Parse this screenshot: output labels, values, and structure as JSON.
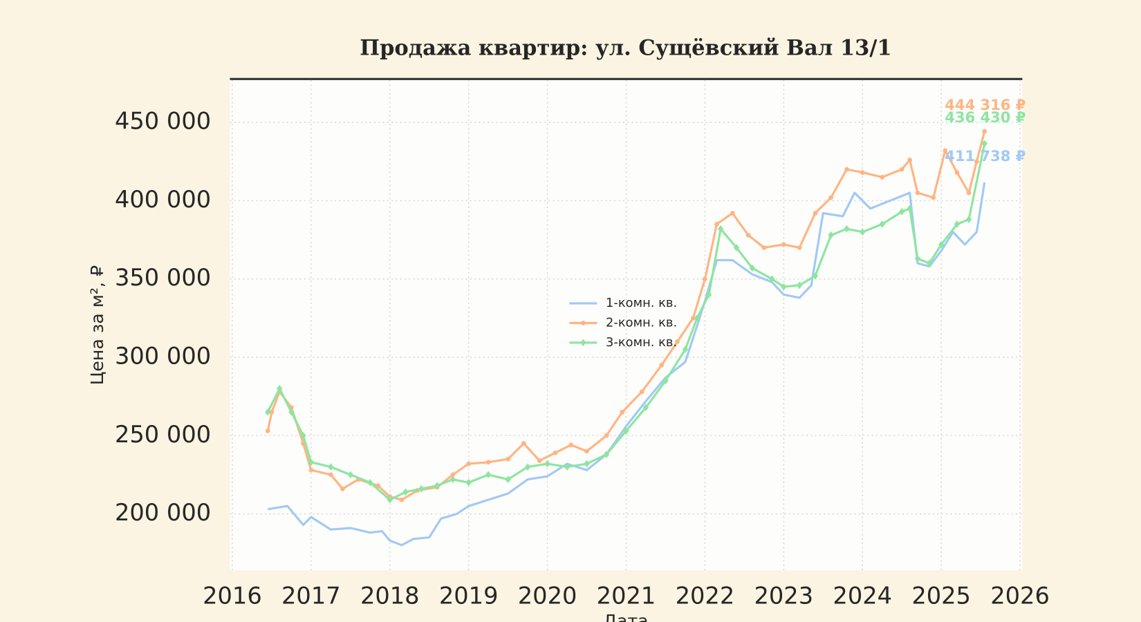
{
  "chart_data": {
    "type": "line",
    "title": "Продажа квартир: ул. Сущёвский Вал 13/1",
    "x_label": "Дата",
    "y_label": "Цена за м², ₽",
    "xlim": [
      2015.97,
      2026.03
    ],
    "ylim": [
      164000,
      477000
    ],
    "xticks": [
      2016,
      2017,
      2018,
      2019,
      2020,
      2021,
      2022,
      2023,
      2024,
      2025,
      2026
    ],
    "yticks": [
      {
        "value": 200000,
        "label": "200 000"
      },
      {
        "value": 250000,
        "label": "250 000"
      },
      {
        "value": 300000,
        "label": "300 000"
      },
      {
        "value": 350000,
        "label": "350 000"
      },
      {
        "value": 400000,
        "label": "400 000"
      },
      {
        "value": 450000,
        "label": "450 000"
      }
    ],
    "grid": true,
    "legend": "center",
    "series": [
      {
        "name": "1-комн. кв.",
        "color": "#a1c9f4",
        "marker": "none",
        "x": [
          2016.45,
          2016.7,
          2016.9,
          2017.0,
          2017.25,
          2017.5,
          2017.75,
          2017.9,
          2018.0,
          2018.15,
          2018.3,
          2018.5,
          2018.65,
          2018.85,
          2019.0,
          2019.25,
          2019.5,
          2019.75,
          2020.0,
          2020.25,
          2020.5,
          2020.75,
          2021.0,
          2021.25,
          2021.5,
          2021.75,
          2021.9,
          2022.0,
          2022.15,
          2022.35,
          2022.6,
          2022.85,
          2023.0,
          2023.2,
          2023.35,
          2023.5,
          2023.75,
          2023.9,
          2024.1,
          2024.35,
          2024.6,
          2024.7,
          2024.85,
          2025.0,
          2025.15,
          2025.3,
          2025.45,
          2025.55
        ],
        "values": [
          203000,
          205000,
          193000,
          198000,
          190000,
          191000,
          188000,
          189000,
          183000,
          180000,
          184000,
          185000,
          197000,
          200000,
          205000,
          209000,
          213000,
          222000,
          224000,
          232000,
          228000,
          238000,
          256000,
          272000,
          287000,
          297000,
          320000,
          336000,
          362000,
          362000,
          353000,
          348000,
          340000,
          338000,
          346000,
          392000,
          390000,
          405000,
          395000,
          400000,
          405000,
          360000,
          358000,
          368000,
          380000,
          372000,
          380000,
          411738
        ],
        "value_labels": [
          null,
          null,
          null,
          null,
          null,
          null,
          null,
          null,
          null,
          null,
          null,
          null,
          null,
          null,
          null,
          null,
          null,
          null,
          null,
          null,
          null,
          null,
          null,
          null,
          null,
          null,
          null,
          null,
          null,
          null,
          null,
          null,
          null,
          null,
          null,
          null,
          null,
          null,
          null,
          null,
          null,
          null,
          null,
          null,
          null,
          null,
          null,
          "411 738 ₽"
        ]
      },
      {
        "name": "2-комн. кв.",
        "color": "#ffb482",
        "marker": "circle",
        "x": [
          2016.45,
          2016.5,
          2016.6,
          2016.75,
          2016.9,
          2017.0,
          2017.25,
          2017.4,
          2017.6,
          2017.85,
          2018.0,
          2018.15,
          2018.35,
          2018.6,
          2018.8,
          2019.0,
          2019.25,
          2019.5,
          2019.7,
          2019.9,
          2020.1,
          2020.3,
          2020.5,
          2020.75,
          2020.95,
          2021.2,
          2021.45,
          2021.65,
          2021.85,
          2022.0,
          2022.15,
          2022.35,
          2022.55,
          2022.75,
          2023.0,
          2023.2,
          2023.4,
          2023.6,
          2023.8,
          2024.0,
          2024.25,
          2024.5,
          2024.6,
          2024.7,
          2024.9,
          2025.05,
          2025.2,
          2025.35,
          2025.45,
          2025.55
        ],
        "values": [
          253000,
          265000,
          278000,
          268000,
          245000,
          228000,
          225000,
          216000,
          222000,
          218000,
          211000,
          209000,
          215000,
          217000,
          225000,
          232000,
          233000,
          235000,
          245000,
          234000,
          239000,
          244000,
          240000,
          250000,
          265000,
          278000,
          295000,
          310000,
          325000,
          350000,
          385000,
          392000,
          378000,
          370000,
          372000,
          370000,
          392000,
          402000,
          420000,
          418000,
          415000,
          420000,
          426000,
          405000,
          402000,
          432000,
          418000,
          405000,
          425000,
          444316
        ],
        "value_labels": [
          null,
          null,
          null,
          null,
          null,
          null,
          null,
          null,
          null,
          null,
          null,
          null,
          null,
          null,
          null,
          null,
          null,
          null,
          null,
          null,
          null,
          null,
          null,
          null,
          null,
          null,
          null,
          null,
          null,
          null,
          null,
          null,
          null,
          null,
          null,
          null,
          null,
          null,
          null,
          null,
          null,
          null,
          null,
          null,
          null,
          null,
          null,
          null,
          null,
          "444 316 ₽"
        ]
      },
      {
        "name": "3-комн. кв.",
        "color": "#8de5a1",
        "marker": "diamond",
        "x": [
          2016.45,
          2016.6,
          2016.75,
          2016.9,
          2017.0,
          2017.25,
          2017.5,
          2017.75,
          2018.0,
          2018.2,
          2018.4,
          2018.6,
          2018.8,
          2019.0,
          2019.25,
          2019.5,
          2019.75,
          2020.0,
          2020.25,
          2020.5,
          2020.75,
          2021.0,
          2021.25,
          2021.5,
          2021.75,
          2021.9,
          2022.05,
          2022.2,
          2022.4,
          2022.6,
          2022.85,
          2023.0,
          2023.2,
          2023.4,
          2023.6,
          2023.8,
          2024.0,
          2024.25,
          2024.5,
          2024.6,
          2024.7,
          2024.85,
          2025.0,
          2025.2,
          2025.35,
          2025.55
        ],
        "values": [
          265000,
          280000,
          265000,
          250000,
          233000,
          230000,
          225000,
          220000,
          209000,
          214000,
          216000,
          218000,
          222000,
          220000,
          225000,
          222000,
          230000,
          232000,
          230000,
          232000,
          238000,
          253000,
          268000,
          285000,
          305000,
          325000,
          340000,
          382000,
          370000,
          357000,
          350000,
          345000,
          346000,
          352000,
          378000,
          382000,
          380000,
          385000,
          393000,
          395000,
          363000,
          360000,
          372000,
          385000,
          388000,
          436430
        ],
        "value_labels": [
          null,
          null,
          null,
          null,
          null,
          null,
          null,
          null,
          null,
          null,
          null,
          null,
          null,
          null,
          null,
          null,
          null,
          null,
          null,
          null,
          null,
          null,
          null,
          null,
          null,
          null,
          null,
          null,
          null,
          null,
          null,
          null,
          null,
          null,
          null,
          null,
          null,
          null,
          null,
          null,
          null,
          null,
          null,
          null,
          null,
          "436 430 ₽"
        ]
      }
    ]
  }
}
